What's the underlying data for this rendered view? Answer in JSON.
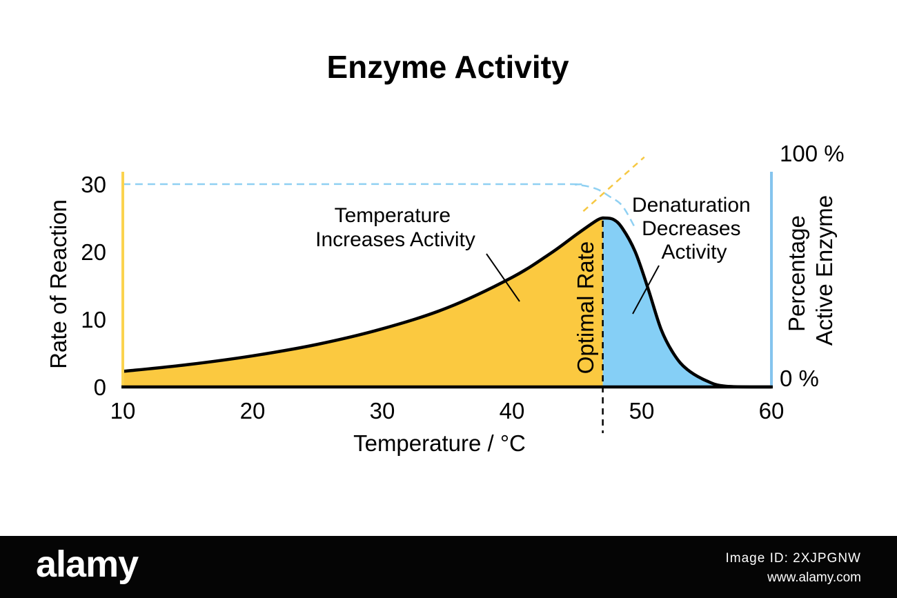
{
  "chart_data": {
    "type": "area",
    "title": "Enzyme Activity",
    "xlabel": "Temperature / °C",
    "ylabel": "Rate of Reaction",
    "y2label_lines": [
      "Percentage",
      "Active Enzyme"
    ],
    "xlim": [
      10,
      60
    ],
    "ylim": [
      0,
      30
    ],
    "xticks": [
      10,
      20,
      30,
      40,
      50,
      60
    ],
    "yticks": [
      0,
      10,
      20,
      30
    ],
    "y2ticks": [
      "0 %",
      "100 %"
    ],
    "grid": false,
    "optimum": {
      "x": 47,
      "y": 25,
      "label": "Optimal Rate"
    },
    "series": [
      {
        "color": "#fbc940",
        "x": [
          10,
          15,
          20,
          25,
          30,
          35,
          40,
          43,
          45,
          46.5,
          47
        ],
        "y": [
          2.3,
          3.3,
          4.6,
          6.3,
          8.6,
          11.7,
          16.2,
          19.8,
          22.6,
          24.6,
          25
        ]
      },
      {
        "color": "#85cff6",
        "x": [
          47,
          47.8,
          48.5,
          49.5,
          50.5,
          51.5,
          52.5,
          53.5,
          55,
          56.5,
          60
        ],
        "y": [
          25,
          24.8,
          23.5,
          20,
          14.5,
          8.5,
          4.8,
          2.6,
          0.9,
          0.1,
          0
        ]
      }
    ],
    "activity_trend": {
      "color": "#f6c843",
      "x": [
        45.5,
        50.2
      ],
      "y": [
        26,
        34
      ]
    },
    "active_enzyme": {
      "color": "#8fd0f2",
      "x": [
        10,
        42,
        45,
        46.5,
        47.5,
        48.5,
        49.5
      ],
      "y": [
        30,
        30,
        29.9,
        29.3,
        28.2,
        26.8,
        23.5
      ]
    },
    "annotations": [
      {
        "lines": [
          "Temperature",
          "Increases Activity"
        ]
      },
      {
        "lines": [
          "Denaturation",
          "Decreases",
          "Activity"
        ]
      }
    ],
    "colors": {
      "y_axis_left": "#fbd34f",
      "y_axis_right": "#85c4ee",
      "axis": "#000000"
    }
  },
  "footer": {
    "brand": "alamy",
    "image_id": "Image ID: 2XJPGNW",
    "site": "www.alamy.com"
  }
}
